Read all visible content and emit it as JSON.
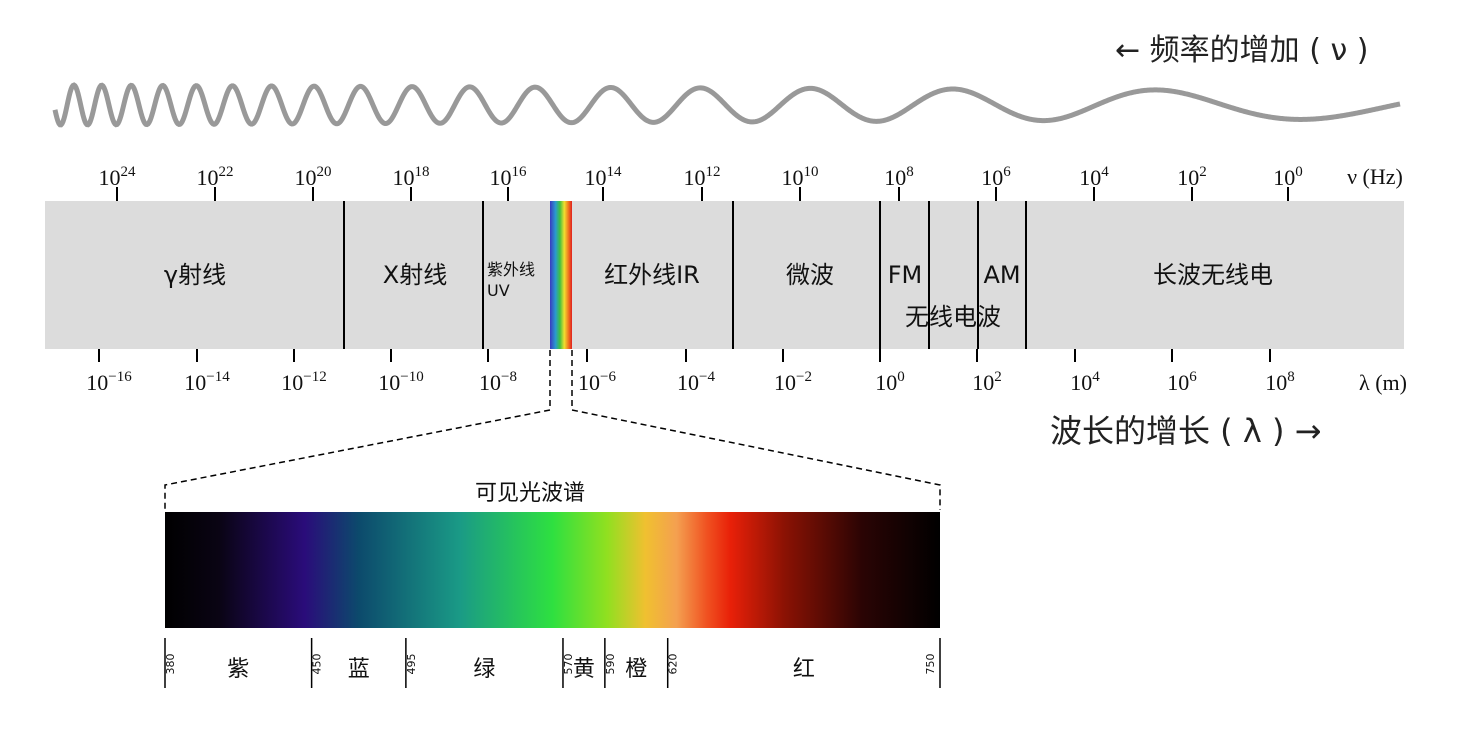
{
  "header": {
    "frequency_label": "← 频率的增加 ( ν )",
    "wavelength_label": "波长的增长 ( λ )  →"
  },
  "frequency_axis": {
    "unit": "ν (Hz)",
    "ticks": [
      {
        "base": "10",
        "exp": "24"
      },
      {
        "base": "10",
        "exp": "22"
      },
      {
        "base": "10",
        "exp": "20"
      },
      {
        "base": "10",
        "exp": "18"
      },
      {
        "base": "10",
        "exp": "16"
      },
      {
        "base": "10",
        "exp": "14"
      },
      {
        "base": "10",
        "exp": "12"
      },
      {
        "base": "10",
        "exp": "10"
      },
      {
        "base": "10",
        "exp": "8"
      },
      {
        "base": "10",
        "exp": "6"
      },
      {
        "base": "10",
        "exp": "4"
      },
      {
        "base": "10",
        "exp": "2"
      },
      {
        "base": "10",
        "exp": "0"
      }
    ]
  },
  "wavelength_axis": {
    "unit": "λ (m)",
    "ticks": [
      {
        "base": "10",
        "exp": "−16"
      },
      {
        "base": "10",
        "exp": "−14"
      },
      {
        "base": "10",
        "exp": "−12"
      },
      {
        "base": "10",
        "exp": "−10"
      },
      {
        "base": "10",
        "exp": "−8"
      },
      {
        "base": "10",
        "exp": "−6"
      },
      {
        "base": "10",
        "exp": "−4"
      },
      {
        "base": "10",
        "exp": "−2"
      },
      {
        "base": "10",
        "exp": "0"
      },
      {
        "base": "10",
        "exp": "2"
      },
      {
        "base": "10",
        "exp": "4"
      },
      {
        "base": "10",
        "exp": "6"
      },
      {
        "base": "10",
        "exp": "8"
      }
    ]
  },
  "bands": [
    "γ射线",
    "X射线",
    "紫外线",
    "UV",
    "红外线IR",
    "微波",
    "FM",
    "AM",
    "无线电波",
    "长波无线电"
  ],
  "visible": {
    "title": "可见光波谱",
    "boundaries_nm": [
      380,
      450,
      495,
      570,
      590,
      620,
      750
    ],
    "colors": [
      "紫",
      "蓝",
      "绿",
      "黄",
      "橙",
      "红"
    ]
  }
}
